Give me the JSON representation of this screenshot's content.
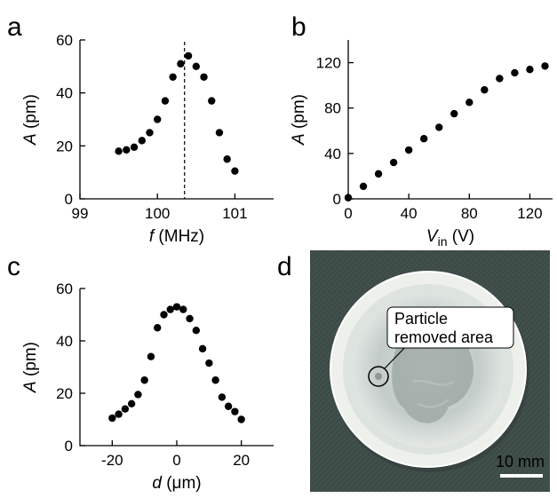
{
  "panel_letters": [
    "a",
    "b",
    "c",
    "d"
  ],
  "chart_data": [
    {
      "panel": "a",
      "type": "scatter",
      "xlabel_var": "f",
      "xlabel_unit": "(MHz)",
      "ylabel_var": "A",
      "ylabel_unit": "(pm)",
      "xlim": [
        99,
        101.5
      ],
      "ylim": [
        0,
        60
      ],
      "xticks": [
        99,
        100,
        101
      ],
      "yticks": [
        0,
        20,
        40,
        60
      ],
      "vline": 100.35,
      "grid": false,
      "series": [
        {
          "x": [
            99.5,
            99.6,
            99.7,
            99.8,
            99.9,
            100.0,
            100.1,
            100.2,
            100.3,
            100.4,
            100.5,
            100.6,
            100.7,
            100.8,
            100.9,
            101.0
          ],
          "y": [
            18,
            18.5,
            19.5,
            22,
            25,
            30,
            37,
            46,
            51,
            54,
            50,
            46,
            37,
            25,
            15,
            10.5
          ]
        }
      ]
    },
    {
      "panel": "b",
      "type": "scatter",
      "xlabel_var": "V",
      "xlabel_sub": "in",
      "xlabel_unit": "(V)",
      "ylabel_var": "A",
      "ylabel_unit": "(pm)",
      "xlim": [
        0,
        135
      ],
      "ylim": [
        0,
        140
      ],
      "xticks": [
        0,
        40,
        80,
        120
      ],
      "yticks": [
        0,
        40,
        80,
        120
      ],
      "grid": false,
      "series": [
        {
          "x": [
            0,
            10,
            20,
            30,
            40,
            50,
            60,
            70,
            80,
            90,
            100,
            110,
            120,
            130
          ],
          "y": [
            1,
            11,
            22,
            32,
            43,
            53,
            63,
            75,
            85,
            96,
            106,
            111,
            114,
            117
          ]
        }
      ]
    },
    {
      "panel": "c",
      "type": "scatter",
      "xlabel_var": "d",
      "xlabel_unit": "(μm)",
      "ylabel_var": "A",
      "ylabel_unit": "(pm)",
      "xlim": [
        -30,
        30
      ],
      "ylim": [
        0,
        60
      ],
      "xticks": [
        -20,
        0,
        20
      ],
      "yticks": [
        0,
        20,
        40,
        60
      ],
      "grid": false,
      "series": [
        {
          "x": [
            -20,
            -18,
            -16,
            -14,
            -12,
            -10,
            -8,
            -6,
            -4,
            -2,
            0,
            2,
            4,
            6,
            8,
            10,
            12,
            14,
            16,
            18,
            20
          ],
          "y": [
            10.5,
            12,
            14,
            16,
            19.5,
            25,
            34,
            45,
            50,
            52,
            53,
            52,
            48.5,
            44,
            37,
            31.5,
            25,
            18.5,
            15,
            13,
            10
          ]
        }
      ]
    }
  ],
  "photo": {
    "annotation": "Particle removed area",
    "annotation_line1": "Particle",
    "annotation_line2": "removed area",
    "scale_bar_label": "10 mm"
  },
  "colors": {
    "background": "#ffffff",
    "ink": "#000000",
    "photo_background": "#3f4d4a",
    "dish_rim": "#e4e7e3",
    "dish_inner": "#c9d2cf"
  }
}
